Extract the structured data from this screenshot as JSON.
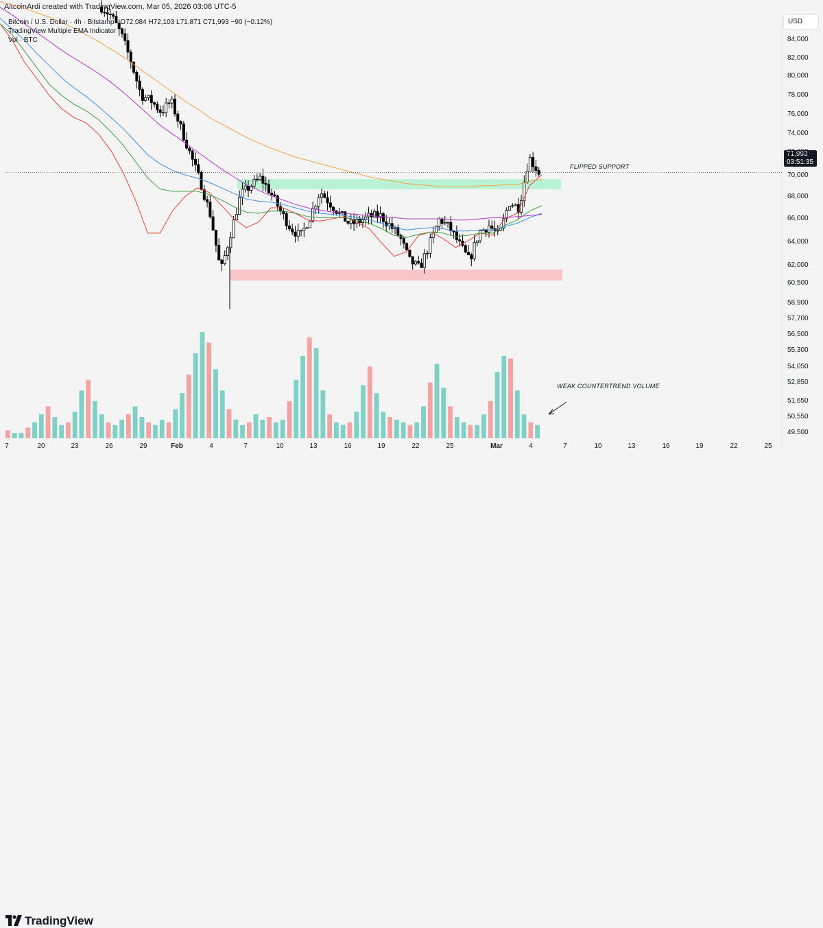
{
  "header": {
    "credit": "AltcoinArdi created with TradingView.com, Mar 05, 2026 03:08 UTC-5"
  },
  "legend": {
    "symbol_line": "Bitcoin / U.S. Dollar · 4h · Bitstamp",
    "ohlc": "O72,084 H72,103 L71,871 C71,993 −90 (−0.12%)",
    "indicator": "TradingView Multiple EMA Indicator",
    "volume": "Vol · BTC"
  },
  "price_axis": {
    "currency": "USD",
    "ticks": [
      "84,000",
      "82,000",
      "80,000",
      "78,000",
      "76,000",
      "74,000",
      "72,000",
      "70,000",
      "68,000",
      "66,000",
      "64,000",
      "62,000",
      "60,500",
      "58,900",
      "57,700",
      "56,500",
      "55,300",
      "54,050",
      "52,850",
      "51,650",
      "50,550",
      "49,500"
    ],
    "last_price": "71,993",
    "countdown": "03:51:35"
  },
  "date_axis": {
    "ticks": [
      "7",
      "20",
      "23",
      "26",
      "29",
      "Feb",
      "4",
      "7",
      "10",
      "13",
      "16",
      "19",
      "22",
      "25",
      "Mar",
      "4",
      "7",
      "10",
      "13",
      "16",
      "19",
      "22",
      "25"
    ],
    "bold": [
      "Feb",
      "Mar"
    ]
  },
  "annotations": {
    "flipped_support": "FLIPPED SUPPORT",
    "weak_volume": "WEAK COUNTERTREND VOLUME"
  },
  "brand": {
    "name": "TradingView"
  },
  "colors": {
    "up_candle": "#000000",
    "volume_up": "#7fd1c8",
    "volume_down": "#f4a3a3",
    "ema_fast": "#e8403b",
    "ema_2": "#3f9e3f",
    "ema_3": "#3d8fe8",
    "ema_4": "#b534c7",
    "ema_5": "#f2a14a",
    "support_zone": "#b9f3d3",
    "demand_zone": "#f8c6c8"
  },
  "chart_data": {
    "type": "candlestick",
    "timeframe": "4h",
    "y_range": [
      59400,
      86600
    ],
    "last_close": 71993,
    "zones": [
      {
        "name": "FLIPPED SUPPORT",
        "from": 70500,
        "to": 71400
      },
      {
        "name": "demand",
        "from": 62200,
        "to": 63200
      }
    ],
    "price_path": [
      [
        0,
        87000
      ],
      [
        1,
        86200
      ],
      [
        2,
        84500
      ],
      [
        3,
        82000
      ],
      [
        4,
        79000
      ],
      [
        5,
        78500
      ],
      [
        6,
        77500
      ],
      [
        7,
        78500
      ],
      [
        8,
        76000
      ],
      [
        9,
        73500
      ],
      [
        10,
        71000
      ],
      [
        11,
        68000
      ],
      [
        12,
        63000
      ],
      [
        13,
        66500
      ],
      [
        14,
        70000
      ],
      [
        15,
        70800
      ],
      [
        16,
        71500
      ],
      [
        17,
        70200
      ],
      [
        18,
        68500
      ],
      [
        19,
        67000
      ],
      [
        20,
        66200
      ],
      [
        21,
        68000
      ],
      [
        22,
        70300
      ],
      [
        23,
        69200
      ],
      [
        24,
        68200
      ],
      [
        25,
        67300
      ],
      [
        26,
        67600
      ],
      [
        27,
        68000
      ],
      [
        28,
        68100
      ],
      [
        29,
        67200
      ],
      [
        30,
        66200
      ],
      [
        31,
        64000
      ],
      [
        32,
        63300
      ],
      [
        33,
        65500
      ],
      [
        34,
        67800
      ],
      [
        35,
        67000
      ],
      [
        36,
        65500
      ],
      [
        37,
        64000
      ],
      [
        38,
        66600
      ],
      [
        39,
        67200
      ],
      [
        40,
        66200
      ],
      [
        41,
        69300
      ],
      [
        42,
        68800
      ],
      [
        43,
        73400
      ],
      [
        44,
        72000
      ]
    ],
    "ema_series": [
      {
        "color": "#e8403b",
        "values": [
          85500,
          84000,
          82000,
          80500,
          79000,
          77800,
          77000,
          76500,
          75500,
          74000,
          72000,
          69500,
          66500,
          66500,
          68500,
          69800,
          70600,
          70200,
          69000,
          67800,
          67000,
          67500,
          68800,
          68800,
          68300,
          67700,
          67600,
          67800,
          68000,
          67500,
          66900,
          65600,
          64400,
          64800,
          66300,
          66600,
          66000,
          65200,
          65800,
          66500,
          66300,
          67800,
          68300,
          70800,
          71800
        ]
      },
      {
        "color": "#3f9e3f",
        "values": [
          85500,
          84500,
          83000,
          81500,
          80000,
          79000,
          78200,
          77600,
          76800,
          75700,
          74500,
          73000,
          71500,
          70500,
          70300,
          70300,
          70300,
          70000,
          69500,
          68900,
          68400,
          68300,
          68500,
          68500,
          68300,
          68000,
          67900,
          67900,
          67900,
          67700,
          67400,
          66900,
          66300,
          66100,
          66400,
          66600,
          66500,
          66200,
          66300,
          66500,
          66500,
          67200,
          67700,
          68500,
          69000
        ]
      },
      {
        "color": "#3d8fe8",
        "values": [
          86000,
          85000,
          84000,
          82800,
          81700,
          80600,
          79700,
          78900,
          78000,
          77000,
          76000,
          74800,
          73600,
          72800,
          72200,
          71800,
          71500,
          71100,
          70600,
          70100,
          69600,
          69400,
          69300,
          69100,
          68800,
          68500,
          68300,
          68200,
          68100,
          67900,
          67700,
          67400,
          67000,
          66800,
          66900,
          67000,
          66900,
          66700,
          66700,
          66800,
          66800,
          67100,
          67400,
          67900,
          68300
        ]
      },
      {
        "color": "#b534c7",
        "values": [
          87000,
          86300,
          85500,
          84700,
          83900,
          83100,
          82400,
          81700,
          81000,
          80200,
          79300,
          78300,
          77300,
          76300,
          75500,
          74700,
          73900,
          73100,
          72300,
          71600,
          70900,
          70400,
          69900,
          69500,
          69100,
          68800,
          68600,
          68400,
          68300,
          68200,
          68100,
          68000,
          67900,
          67800,
          67800,
          67800,
          67800,
          67700,
          67700,
          67800,
          67900,
          67900,
          68000,
          68100,
          68200
        ]
      },
      {
        "color": "#f2a14a",
        "values": [
          87500,
          87200,
          86900,
          86500,
          86100,
          85600,
          85100,
          84500,
          83900,
          83200,
          82500,
          81700,
          80900,
          80100,
          79300,
          78500,
          77800,
          77000,
          76400,
          75800,
          75200,
          74700,
          74200,
          73800,
          73400,
          73100,
          72800,
          72500,
          72200,
          71900,
          71600,
          71400,
          71200,
          71000,
          70900,
          70800,
          70700,
          70700,
          70700,
          70800,
          70800,
          70900,
          70900,
          71200,
          71400
        ]
      }
    ],
    "volume": [
      3,
      2,
      2,
      4,
      6,
      9,
      12,
      8,
      5,
      6,
      10,
      18,
      22,
      14,
      9,
      6,
      5,
      7,
      9,
      12,
      8,
      6,
      5,
      7,
      6,
      11,
      17,
      24,
      32,
      40,
      36,
      26,
      18,
      11,
      7,
      5,
      6,
      9,
      7,
      8,
      6,
      7,
      14,
      22,
      31,
      38,
      34,
      18,
      9,
      6,
      5,
      6,
      10,
      20,
      27,
      17,
      10,
      8,
      7,
      6,
      5,
      6,
      12,
      21,
      28,
      19,
      12,
      8,
      6,
      5,
      5,
      9,
      14,
      25,
      31,
      30,
      18,
      9,
      6,
      5
    ]
  }
}
